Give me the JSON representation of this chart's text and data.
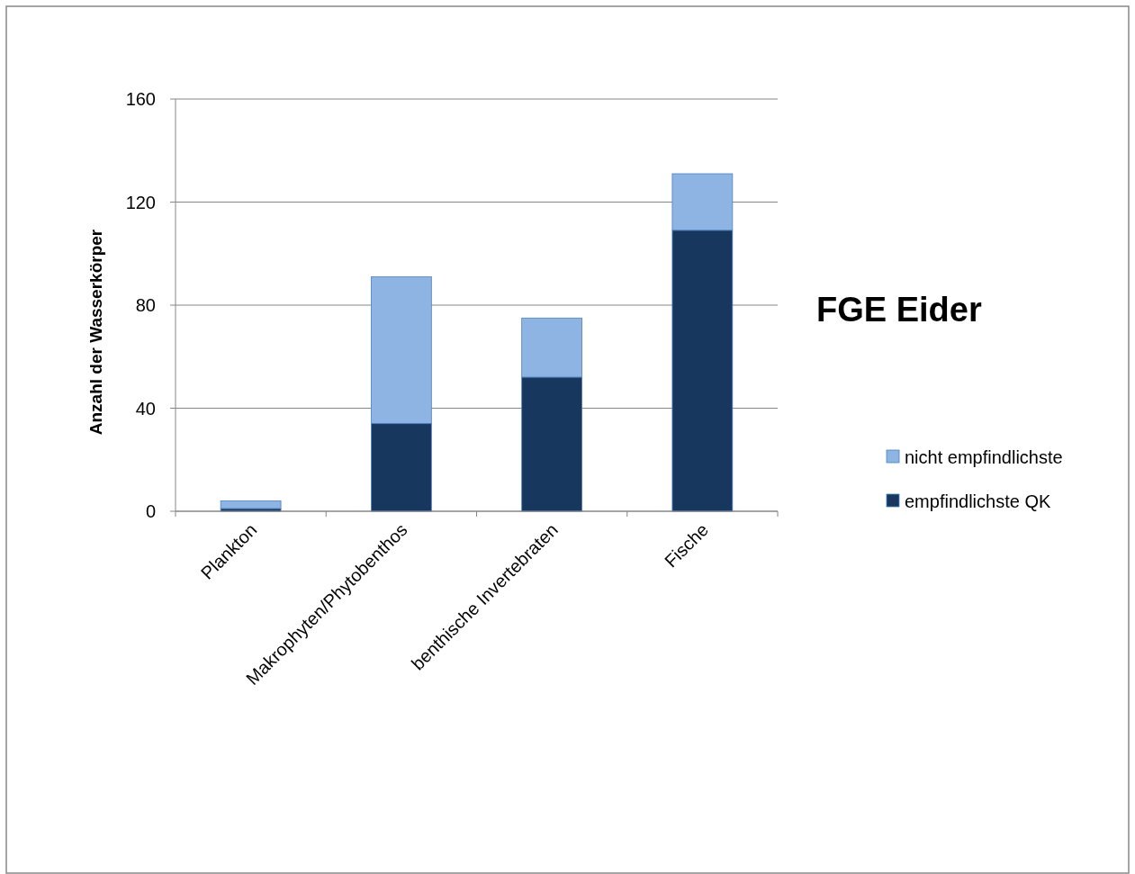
{
  "chart_data": {
    "type": "bar",
    "title": "FGE Eider",
    "ylabel": "Anzahl der Wasserkörper",
    "categories": [
      "Plankton",
      "Makrophyten/Phytobenthos",
      "benthische Invertebraten",
      "Fische"
    ],
    "series": [
      {
        "name": "empfindlichste QK",
        "color": "#17375e",
        "values": [
          1,
          34,
          52,
          109
        ]
      },
      {
        "name": "nicht empfindlichste",
        "color": "#8eb4e3",
        "values": [
          3,
          57,
          23,
          22
        ]
      }
    ],
    "stacked": true,
    "ylim": [
      0,
      160
    ],
    "yticks": [
      0,
      40,
      80,
      120,
      160
    ],
    "grid": "y",
    "legend": "right"
  }
}
